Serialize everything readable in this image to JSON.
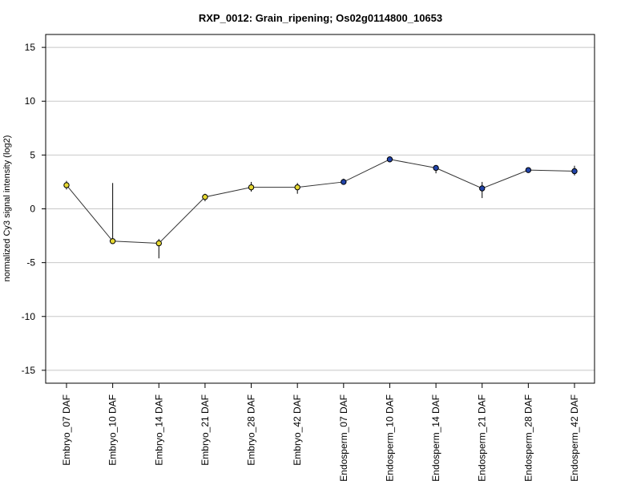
{
  "chart_data": {
    "type": "line",
    "title": "RXP_0012: Grain_ripening; Os02g0114800_10653",
    "ylabel": "normalized Cy3 signal intensity (log2)",
    "xlabel": "",
    "ylim": [
      -16.2,
      16.2
    ],
    "yticks": [
      15,
      10,
      5,
      0,
      -5,
      -10,
      -15
    ],
    "grid": "horizontal",
    "categories": [
      "Embryo_07 DAF",
      "Embryo_10 DAF",
      "Embryo_14 DAF",
      "Embryo_21 DAF",
      "Embryo_28 DAF",
      "Embryo_42 DAF",
      "Endosperm_07 DAF",
      "Endosperm_10 DAF",
      "Endosperm_14 DAF",
      "Endosperm_21 DAF",
      "Endosperm_28 DAF",
      "Endosperm_42 DAF"
    ],
    "values": [
      2.2,
      -3.0,
      -3.2,
      1.1,
      2.0,
      2.0,
      2.5,
      4.6,
      3.8,
      1.9,
      3.6,
      3.5
    ],
    "error_low": [
      1.8,
      -3.0,
      -4.6,
      0.7,
      1.6,
      1.4,
      2.3,
      4.4,
      3.3,
      1.0,
      3.4,
      3.1
    ],
    "error_high": [
      2.6,
      2.4,
      -2.8,
      1.4,
      2.5,
      2.4,
      2.8,
      4.8,
      4.0,
      2.5,
      3.8,
      4.0
    ],
    "point_colors": [
      "#e6d832",
      "#e6d832",
      "#e6d832",
      "#e6d832",
      "#e6d832",
      "#e6d832",
      "#2244aa",
      "#2244aa",
      "#2244aa",
      "#2244aa",
      "#2244aa",
      "#2244aa"
    ],
    "line_color": "#333333",
    "grid_color": "#c8c8c8"
  }
}
